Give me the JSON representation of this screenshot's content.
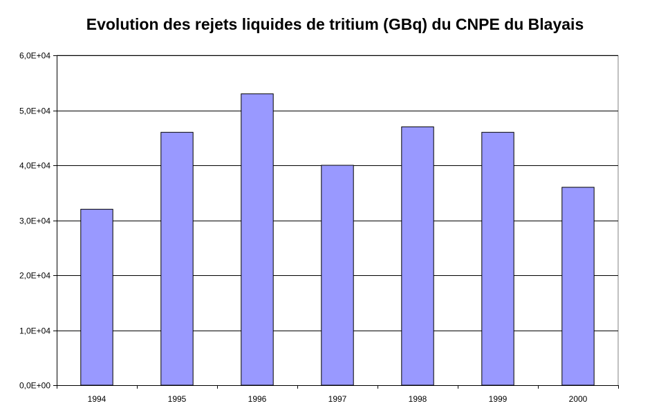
{
  "chart_data": {
    "type": "bar",
    "title": "Evolution des rejets liquides de tritium (GBq) du CNPE du Blayais",
    "xlabel": "",
    "ylabel": "",
    "categories": [
      "1994",
      "1995",
      "1996",
      "1997",
      "1998",
      "1999",
      "2000"
    ],
    "values": [
      32000,
      46000,
      53000,
      40000,
      47000,
      46000,
      36000
    ],
    "ylim": [
      0,
      60000
    ],
    "ytick_labels": [
      "0,0E+00",
      "1,0E+04",
      "2,0E+04",
      "3,0E+04",
      "4,0E+04",
      "5,0E+04",
      "6,0E+04"
    ],
    "grid": true,
    "legend": "none",
    "bar_color": "#9999ff",
    "bar_edge_color": "#000000"
  }
}
